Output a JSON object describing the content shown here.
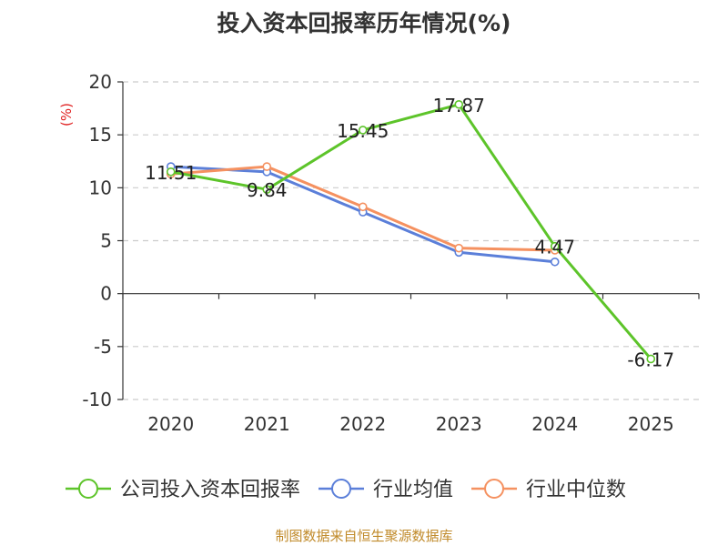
{
  "title": "投入资本回报率历年情况(%)",
  "source": "制图数据来自恒生聚源数据库",
  "chart_data": {
    "type": "line",
    "title": "投入资本回报率历年情况(%)",
    "ylabel": "(%)",
    "xlabel": "",
    "categories": [
      "2020",
      "2021",
      "2022",
      "2023",
      "2024",
      "2025"
    ],
    "ylim": [
      -10,
      20
    ],
    "yticks": [
      -10,
      -5,
      0,
      5,
      10,
      15,
      20
    ],
    "grid": true,
    "legend_position": "bottom",
    "series": [
      {
        "name": "公司投入资本回报率",
        "color": "#5dc42a",
        "values": [
          11.51,
          9.84,
          15.45,
          17.87,
          4.47,
          -6.17
        ],
        "labels": [
          "11.51",
          "9.84",
          "15.45",
          "17.87",
          "4.47",
          "-6.17"
        ]
      },
      {
        "name": "行业均值",
        "color": "#5b7fd9",
        "values": [
          12.0,
          11.5,
          7.7,
          3.9,
          3.0,
          null
        ]
      },
      {
        "name": "行业中位数",
        "color": "#f59160",
        "values": [
          11.3,
          12.0,
          8.2,
          4.3,
          4.1,
          null
        ]
      }
    ]
  }
}
